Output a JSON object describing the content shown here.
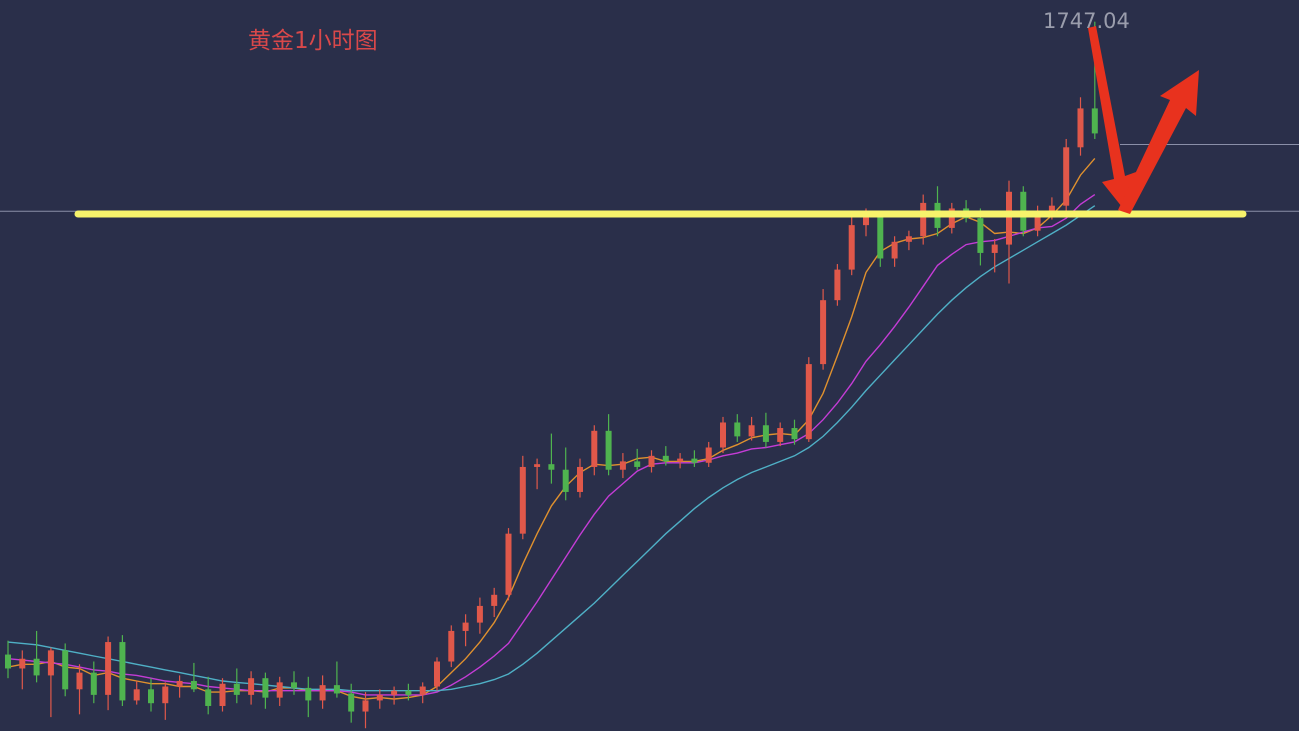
{
  "chart_data": {
    "type": "candlestick",
    "title": "黄金1小时图",
    "ylim": [
      1696,
      1748.6
    ],
    "up_color": "#e0584a",
    "down_color": "#4fb34f",
    "open": [
      1701.5,
      1700.5,
      1701.2,
      1700.0,
      1701.8,
      1699.0,
      1700.2,
      1698.6,
      1702.4,
      1698.2,
      1699.0,
      1698.0,
      1699.2,
      1699.6,
      1699.0,
      1697.8,
      1699.4,
      1698.6,
      1699.8,
      1698.4,
      1699.5,
      1699.1,
      1698.2,
      1699.3,
      1698.7,
      1697.4,
      1698.2,
      1698.6,
      1698.9,
      1698.6,
      1699.2,
      1701.0,
      1703.2,
      1703.8,
      1705.0,
      1705.8,
      1710.2,
      1715.0,
      1715.2,
      1714.8,
      1713.2,
      1715.0,
      1717.6,
      1714.8,
      1715.4,
      1715.0,
      1715.8,
      1715.4,
      1715.6,
      1715.3,
      1716.4,
      1718.2,
      1717.2,
      1718.0,
      1716.8,
      1717.8,
      1717.0,
      1722.4,
      1727.0,
      1729.2,
      1732.4,
      1733.0,
      1730.0,
      1731.2,
      1731.6,
      1734.0,
      1732.2,
      1733.6,
      1732.9,
      1730.4,
      1731.0,
      1734.8,
      1732.0,
      1733.2,
      1733.8,
      1738.0,
      1740.8
    ],
    "high": [
      1702.5,
      1701.8,
      1703.2,
      1702.0,
      1702.3,
      1700.8,
      1701.0,
      1702.8,
      1702.9,
      1699.6,
      1699.8,
      1699.5,
      1700.0,
      1700.9,
      1699.9,
      1699.8,
      1700.5,
      1700.3,
      1700.2,
      1699.9,
      1700.3,
      1699.9,
      1700.0,
      1701.0,
      1699.4,
      1698.8,
      1699.0,
      1699.2,
      1699.4,
      1699.5,
      1701.3,
      1703.6,
      1704.4,
      1705.6,
      1706.3,
      1710.6,
      1715.8,
      1715.6,
      1717.4,
      1716.4,
      1715.6,
      1718.0,
      1718.8,
      1716.0,
      1716.3,
      1716.2,
      1716.5,
      1716.0,
      1716.2,
      1716.8,
      1718.6,
      1718.8,
      1718.6,
      1718.9,
      1718.2,
      1718.4,
      1722.9,
      1727.8,
      1729.6,
      1733.0,
      1733.6,
      1733.4,
      1731.6,
      1732.0,
      1734.6,
      1735.2,
      1734.0,
      1734.2,
      1733.6,
      1731.4,
      1735.6,
      1735.2,
      1733.8,
      1734.4,
      1738.6,
      1741.6,
      1747.04
    ],
    "low": [
      1699.8,
      1699.0,
      1699.5,
      1697.0,
      1698.5,
      1697.2,
      1698.0,
      1697.5,
      1697.8,
      1697.9,
      1697.4,
      1696.8,
      1698.4,
      1698.8,
      1697.2,
      1697.4,
      1698.0,
      1697.9,
      1697.6,
      1697.8,
      1698.6,
      1697.0,
      1697.6,
      1698.4,
      1696.6,
      1696.2,
      1697.6,
      1697.9,
      1698.2,
      1698.0,
      1698.9,
      1700.6,
      1702.1,
      1703.0,
      1704.2,
      1705.4,
      1709.8,
      1713.4,
      1713.8,
      1712.6,
      1712.8,
      1714.4,
      1714.4,
      1714.2,
      1714.8,
      1714.6,
      1715.1,
      1714.9,
      1715.0,
      1715.0,
      1716.0,
      1716.8,
      1716.9,
      1716.4,
      1716.5,
      1716.6,
      1716.8,
      1722.0,
      1726.6,
      1728.8,
      1731.6,
      1729.4,
      1729.4,
      1730.6,
      1731.0,
      1731.6,
      1731.8,
      1732.6,
      1729.5,
      1729.0,
      1728.2,
      1731.6,
      1731.6,
      1732.8,
      1733.4,
      1737.4,
      1738.6
    ],
    "close": [
      1700.5,
      1701.2,
      1700.0,
      1701.8,
      1699.0,
      1700.2,
      1698.6,
      1702.4,
      1698.2,
      1699.0,
      1698.0,
      1699.2,
      1699.6,
      1699.0,
      1697.8,
      1699.4,
      1698.6,
      1699.8,
      1698.4,
      1699.5,
      1699.1,
      1698.2,
      1699.3,
      1698.7,
      1697.4,
      1698.2,
      1698.6,
      1698.9,
      1698.6,
      1699.2,
      1701.0,
      1703.2,
      1703.8,
      1705.0,
      1705.8,
      1710.2,
      1715.0,
      1715.2,
      1714.8,
      1713.2,
      1715.0,
      1717.6,
      1714.8,
      1715.4,
      1715.0,
      1715.8,
      1715.4,
      1715.6,
      1715.3,
      1716.4,
      1718.2,
      1717.2,
      1718.0,
      1716.8,
      1717.8,
      1717.0,
      1722.4,
      1727.0,
      1729.2,
      1732.4,
      1733.0,
      1730.0,
      1731.2,
      1731.6,
      1734.0,
      1732.2,
      1733.6,
      1732.9,
      1730.4,
      1731.0,
      1734.8,
      1732.0,
      1733.2,
      1733.8,
      1738.0,
      1740.8,
      1739.0
    ],
    "ma": [
      {
        "color": "#e0912e",
        "values": [
          1700.6,
          1700.8,
          1700.8,
          1701.0,
          1700.6,
          1700.5,
          1700.0,
          1700.2,
          1699.8,
          1699.6,
          1699.4,
          1699.4,
          1699.2,
          1699.2,
          1698.8,
          1698.8,
          1698.9,
          1698.9,
          1698.8,
          1699.1,
          1699.1,
          1698.9,
          1698.9,
          1698.9,
          1698.5,
          1698.3,
          1698.4,
          1698.3,
          1698.4,
          1698.6,
          1699.2,
          1700.2,
          1701.2,
          1702.4,
          1703.8,
          1705.6,
          1708.0,
          1710.2,
          1712.2,
          1713.6,
          1714.6,
          1715.2,
          1715.1,
          1715.2,
          1715.6,
          1715.7,
          1715.4,
          1715.4,
          1715.4,
          1715.6,
          1716.2,
          1716.6,
          1717.1,
          1717.3,
          1717.4,
          1717.3,
          1718.4,
          1720.3,
          1723.0,
          1725.8,
          1729.0,
          1730.5,
          1731.1,
          1731.4,
          1731.5,
          1731.8,
          1732.5,
          1733.0,
          1732.6,
          1731.8,
          1731.9,
          1731.8,
          1732.2,
          1733.1,
          1734.2,
          1736.0,
          1737.2
        ]
      },
      {
        "color": "#c43cd6",
        "values": [
          1701.2,
          1701.1,
          1701.0,
          1700.9,
          1700.8,
          1700.6,
          1700.4,
          1700.3,
          1700.1,
          1700.0,
          1699.8,
          1699.6,
          1699.5,
          1699.4,
          1699.2,
          1699.1,
          1699.0,
          1698.9,
          1698.9,
          1698.9,
          1698.9,
          1698.9,
          1698.9,
          1698.9,
          1698.8,
          1698.6,
          1698.6,
          1698.6,
          1698.6,
          1698.6,
          1698.8,
          1699.3,
          1699.9,
          1700.6,
          1701.4,
          1702.3,
          1703.8,
          1705.3,
          1706.9,
          1708.5,
          1710.1,
          1711.6,
          1712.9,
          1713.8,
          1714.7,
          1715.2,
          1715.3,
          1715.3,
          1715.3,
          1715.5,
          1715.8,
          1716.0,
          1716.3,
          1716.4,
          1716.6,
          1716.8,
          1717.4,
          1718.4,
          1719.6,
          1721.0,
          1722.6,
          1723.8,
          1725.1,
          1726.5,
          1728.0,
          1729.5,
          1730.3,
          1731.0,
          1731.2,
          1731.3,
          1731.6,
          1731.9,
          1732.2,
          1732.3,
          1732.9,
          1733.9,
          1734.6
        ]
      },
      {
        "color": "#4fb0c6",
        "values": [
          1702.4,
          1702.3,
          1702.2,
          1702.0,
          1701.8,
          1701.6,
          1701.4,
          1701.2,
          1701.0,
          1700.8,
          1700.6,
          1700.4,
          1700.2,
          1700.0,
          1699.8,
          1699.6,
          1699.5,
          1699.4,
          1699.3,
          1699.2,
          1699.1,
          1699.0,
          1699.0,
          1699.0,
          1698.9,
          1698.9,
          1698.9,
          1698.9,
          1698.9,
          1698.9,
          1698.9,
          1699.0,
          1699.2,
          1699.4,
          1699.7,
          1700.1,
          1700.8,
          1701.6,
          1702.5,
          1703.4,
          1704.3,
          1705.2,
          1706.2,
          1707.2,
          1708.2,
          1709.2,
          1710.2,
          1711.1,
          1712.0,
          1712.8,
          1713.5,
          1714.1,
          1714.6,
          1715.0,
          1715.4,
          1715.8,
          1716.4,
          1717.2,
          1718.2,
          1719.3,
          1720.5,
          1721.6,
          1722.7,
          1723.8,
          1724.9,
          1726.0,
          1727.0,
          1727.9,
          1728.7,
          1729.4,
          1730.0,
          1730.6,
          1731.2,
          1731.8,
          1732.4,
          1733.1,
          1733.8
        ]
      }
    ],
    "ref_lines": [
      {
        "value": 1733.4,
        "color": "#8a8fa8"
      },
      {
        "value": 1738.2,
        "color": "#8a8fa8"
      }
    ],
    "support_line": {
      "value": 1733.2,
      "color": "#f7f36b"
    }
  }
}
